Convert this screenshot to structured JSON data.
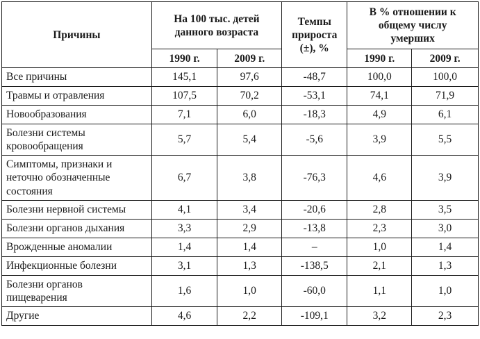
{
  "table": {
    "headers": {
      "cause": "Причины",
      "per100k": "На 100 тыс. детей данного возраста",
      "growth": "Темпы прироста (±), %",
      "percent": "В % отношении к общему числу умерших",
      "year1": "1990 г.",
      "year2": "2009 г.",
      "year3": "1990 г.",
      "year4": "2009 г."
    },
    "rows": [
      {
        "cause": "Все причины",
        "v1990": "145,1",
        "v2009": "97,6",
        "growth": "-48,7",
        "p1990": "100,0",
        "p2009": "100,0"
      },
      {
        "cause": "Травмы и отравления",
        "v1990": "107,5",
        "v2009": "70,2",
        "growth": "-53,1",
        "p1990": "74,1",
        "p2009": "71,9"
      },
      {
        "cause": "Новообразования",
        "v1990": "7,1",
        "v2009": "6,0",
        "growth": "-18,3",
        "p1990": "4,9",
        "p2009": "6,1"
      },
      {
        "cause": "Болезни системы кровообращения",
        "v1990": "5,7",
        "v2009": "5,4",
        "growth": "-5,6",
        "p1990": "3,9",
        "p2009": "5,5"
      },
      {
        "cause": "Симптомы, признаки и неточно обозначенные состояния",
        "v1990": "6,7",
        "v2009": "3,8",
        "growth": "-76,3",
        "p1990": "4,6",
        "p2009": "3,9"
      },
      {
        "cause": "Болезни нервной системы",
        "v1990": "4,1",
        "v2009": "3,4",
        "growth": "-20,6",
        "p1990": "2,8",
        "p2009": "3,5"
      },
      {
        "cause": "Болезни органов дыхания",
        "v1990": "3,3",
        "v2009": "2,9",
        "growth": "-13,8",
        "p1990": "2,3",
        "p2009": "3,0"
      },
      {
        "cause": "Врожденные аномалии",
        "v1990": "1,4",
        "v2009": "1,4",
        "growth": "–",
        "p1990": "1,0",
        "p2009": "1,4"
      },
      {
        "cause": "Инфекционные болезни",
        "v1990": "3,1",
        "v2009": "1,3",
        "growth": "-138,5",
        "p1990": "2,1",
        "p2009": "1,3"
      },
      {
        "cause": "Болезни органов пищеварения",
        "v1990": "1,6",
        "v2009": "1,0",
        "growth": "-60,0",
        "p1990": "1,1",
        "p2009": "1,0"
      },
      {
        "cause": "Другие",
        "v1990": "4,6",
        "v2009": "2,2",
        "growth": "-109,1",
        "p1990": "3,2",
        "p2009": "2,3"
      }
    ]
  }
}
